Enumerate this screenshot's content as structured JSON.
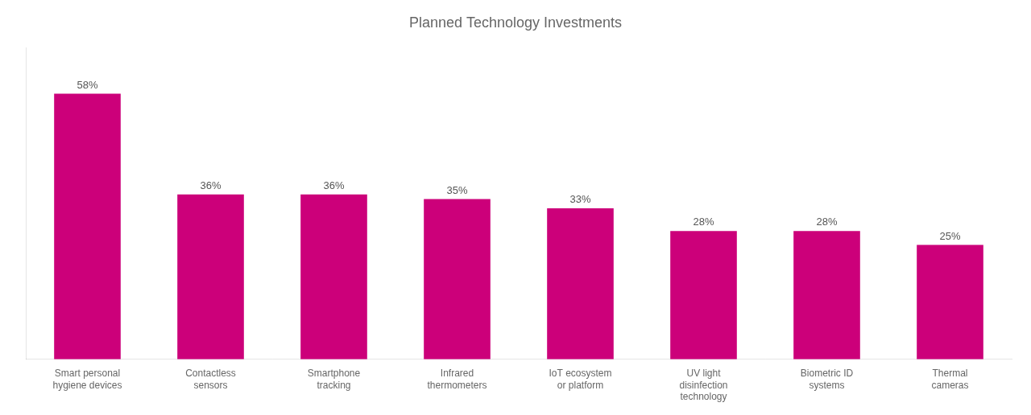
{
  "chart_data": {
    "type": "bar",
    "title": "Planned Technology Investments",
    "categories": [
      "Smart personal\nhygiene devices",
      "Contactless\nsensors",
      "Smartphone\ntracking",
      "Infrared\nthermometers",
      "IoT ecosystem\nor platform",
      "UV light\ndisinfection\ntechnology",
      "Biometric ID\nsystems",
      "Thermal\ncameras"
    ],
    "values": [
      58,
      36,
      36,
      35,
      33,
      28,
      28,
      25
    ],
    "value_labels": [
      "58%",
      "36%",
      "36%",
      "35%",
      "33%",
      "28%",
      "28%",
      "25%"
    ],
    "data_labels": true,
    "color": "#cc007a",
    "ylim": [
      0,
      68
    ],
    "grid": false,
    "tick_labels": "x"
  }
}
